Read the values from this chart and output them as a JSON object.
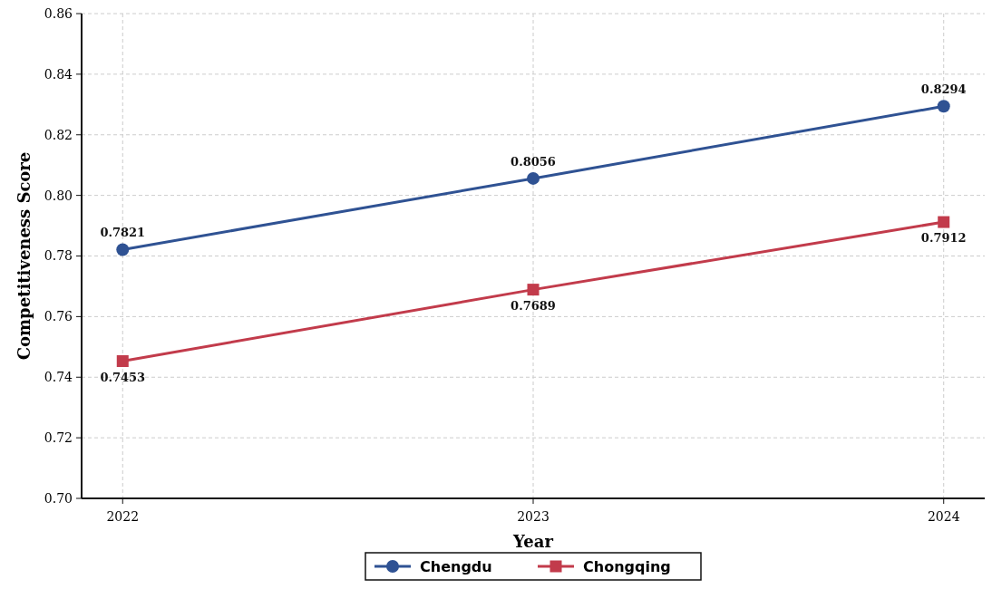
{
  "chart_data": {
    "type": "line",
    "xlabel": "Year",
    "ylabel": "Competitiveness Score",
    "categories": [
      "2022",
      "2023",
      "2024"
    ],
    "series": [
      {
        "name": "Chengdu",
        "color": "#2f5293",
        "values": [
          0.7821,
          0.8056,
          0.8294
        ],
        "marker": "circle"
      },
      {
        "name": "Chongqing",
        "color": "#c23b4b",
        "values": [
          0.7453,
          0.7689,
          0.7912
        ],
        "marker": "square"
      }
    ],
    "ylim": [
      0.7,
      0.86
    ],
    "yticks": [
      {
        "value": 0.7,
        "label": "0.70"
      },
      {
        "value": 0.72,
        "label": "0.72"
      },
      {
        "value": 0.74,
        "label": "0.74"
      },
      {
        "value": 0.76,
        "label": "0.76"
      },
      {
        "value": 0.78,
        "label": "0.78"
      },
      {
        "value": 0.8,
        "label": "0.80"
      },
      {
        "value": 0.82,
        "label": "0.82"
      },
      {
        "value": 0.84,
        "label": "0.84"
      },
      {
        "value": 0.86,
        "label": "0.86"
      }
    ],
    "grid": true,
    "legend": "bottom",
    "data_labels": true,
    "line_style": "solid"
  }
}
